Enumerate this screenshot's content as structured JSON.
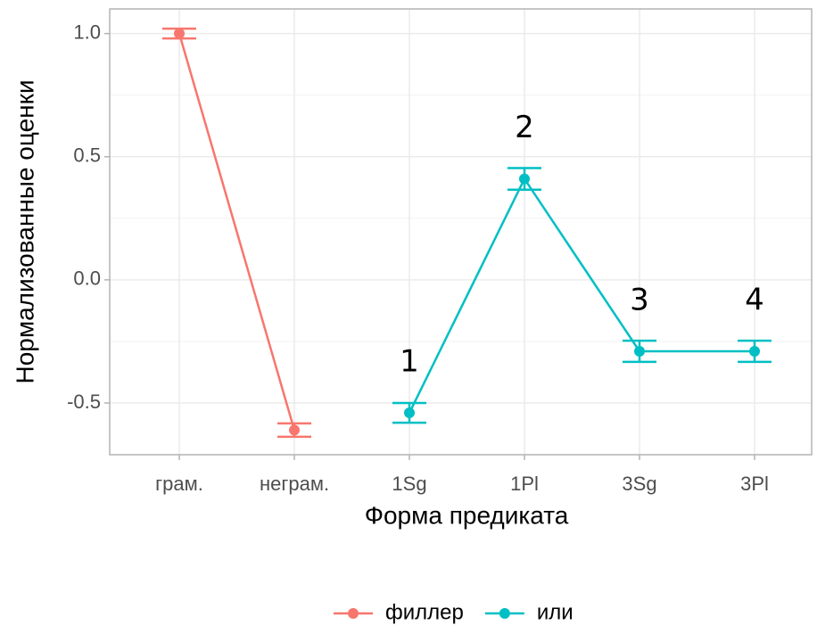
{
  "chart_data": {
    "type": "line",
    "x_label": "Форма предиката",
    "y_label": "Нормализованные оценки",
    "categories": [
      "грам.",
      "неграм.",
      "1Sg",
      "1Pl",
      "3Sg",
      "3Pl"
    ],
    "series": [
      {
        "name": "филлер",
        "color": "#F8766D",
        "values": [
          1.0,
          -0.61,
          null,
          null,
          null,
          null
        ],
        "errors": [
          0.02,
          0.027,
          null,
          null,
          null,
          null
        ]
      },
      {
        "name": "или",
        "color": "#00BFC4",
        "values": [
          null,
          null,
          -0.54,
          0.41,
          -0.29,
          -0.29
        ],
        "errors": [
          null,
          null,
          0.04,
          0.044,
          0.043,
          0.043
        ]
      }
    ],
    "annotations": [
      "1",
      "2",
      "3",
      "4"
    ],
    "ylim": [
      -0.71,
      1.1
    ],
    "yticks": [
      {
        "value": 1,
        "label": "1.0"
      },
      0.5,
      {
        "value": 0,
        "label": "0.0"
      },
      -0.5
    ],
    "grid": true,
    "legend": "bottom"
  }
}
